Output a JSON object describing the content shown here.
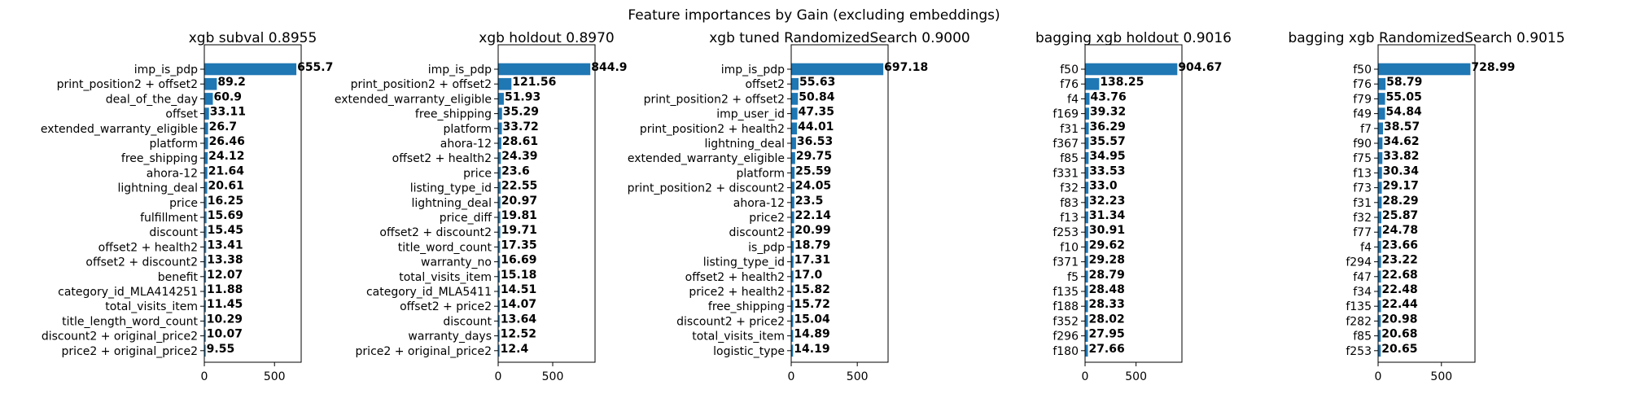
{
  "figure": {
    "title": "Feature importances by Gain (excluding embeddings)"
  },
  "chart_data": [
    {
      "type": "bar",
      "orientation": "horizontal",
      "title": "xgb subval 0.8955",
      "xlim": [
        0,
        690
      ],
      "xticks": [
        0,
        500
      ],
      "categories": [
        "imp_is_pdp",
        "print_position2 + offset2",
        "deal_of_the_day",
        "offset",
        "extended_warranty_eligible",
        "platform",
        "free_shipping",
        "ahora-12",
        "lightning_deal",
        "price",
        "fulfillment",
        "discount",
        "offset2 + health2",
        "offset2 + discount2",
        "benefit",
        "category_id_MLA414251",
        "total_visits_item",
        "title_length_word_count",
        "discount2 + original_price2",
        "price2 + original_price2"
      ],
      "values": [
        655.7,
        89.2,
        60.9,
        33.11,
        26.7,
        26.46,
        24.12,
        21.64,
        20.61,
        16.25,
        15.69,
        15.45,
        13.41,
        13.38,
        12.07,
        11.88,
        11.45,
        10.29,
        10.07,
        9.55
      ],
      "labels": [
        "655.7",
        "89.2",
        "60.9",
        "33.11",
        "26.7",
        "26.46",
        "24.12",
        "21.64",
        "20.61",
        "16.25",
        "15.69",
        "15.45",
        "13.41",
        "13.38",
        "12.07",
        "11.88",
        "11.45",
        "10.29",
        "10.07",
        "9.55"
      ],
      "color": "#1f77b4"
    },
    {
      "type": "bar",
      "orientation": "horizontal",
      "title": "xgb holdout 0.8970",
      "xlim": [
        0,
        888
      ],
      "xticks": [
        0,
        500
      ],
      "categories": [
        "imp_is_pdp",
        "print_position2 + offset2",
        "extended_warranty_eligible",
        "free_shipping",
        "platform",
        "ahora-12",
        "offset2 + health2",
        "price",
        "listing_type_id",
        "lightning_deal",
        "price_diff",
        "offset2 + discount2",
        "title_word_count",
        "warranty_no",
        "total_visits_item",
        "category_id_MLA5411",
        "offset2 + price2",
        "discount",
        "warranty_days",
        "price2 + original_price2"
      ],
      "values": [
        844.9,
        121.56,
        51.93,
        35.29,
        33.72,
        28.61,
        24.39,
        23.6,
        22.55,
        20.97,
        19.81,
        19.71,
        17.35,
        16.69,
        15.18,
        14.51,
        14.07,
        13.64,
        12.52,
        12.4
      ],
      "labels": [
        "844.9",
        "121.56",
        "51.93",
        "35.29",
        "33.72",
        "28.61",
        "24.39",
        "23.6",
        "22.55",
        "20.97",
        "19.81",
        "19.71",
        "17.35",
        "16.69",
        "15.18",
        "14.51",
        "14.07",
        "13.64",
        "12.52",
        "12.4"
      ],
      "color": "#1f77b4"
    },
    {
      "type": "bar",
      "orientation": "horizontal",
      "title": "xgb tuned RandomizedSearch 0.9000",
      "xlim": [
        0,
        733
      ],
      "xticks": [
        0,
        500
      ],
      "categories": [
        "imp_is_pdp",
        "offset2",
        "print_position2 + offset2",
        "imp_user_id",
        "print_position2 + health2",
        "lightning_deal",
        "extended_warranty_eligible",
        "platform",
        "print_position2 + discount2",
        "ahora-12",
        "price2",
        "discount2",
        "is_pdp",
        "listing_type_id",
        "offset2 + health2",
        "price2 + health2",
        "free_shipping",
        "discount2 + price2",
        "total_visits_item",
        "logistic_type"
      ],
      "values": [
        697.18,
        55.63,
        50.84,
        47.35,
        44.01,
        36.53,
        29.75,
        25.59,
        24.05,
        23.5,
        22.14,
        20.99,
        18.79,
        17.31,
        17.0,
        15.82,
        15.72,
        15.04,
        14.89,
        14.19
      ],
      "labels": [
        "697.18",
        "55.63",
        "50.84",
        "47.35",
        "44.01",
        "36.53",
        "29.75",
        "25.59",
        "24.05",
        "23.5",
        "22.14",
        "20.99",
        "18.79",
        "17.31",
        "17.0",
        "15.82",
        "15.72",
        "15.04",
        "14.89",
        "14.19"
      ],
      "color": "#1f77b4"
    },
    {
      "type": "bar",
      "orientation": "horizontal",
      "title": "bagging xgb holdout 0.9016",
      "xlim": [
        0,
        950
      ],
      "xticks": [
        0,
        500
      ],
      "categories": [
        "f50",
        "f76",
        "f4",
        "f169",
        "f31",
        "f367",
        "f85",
        "f331",
        "f32",
        "f83",
        "f13",
        "f253",
        "f10",
        "f371",
        "f5",
        "f135",
        "f188",
        "f352",
        "f296",
        "f180"
      ],
      "values": [
        904.67,
        138.25,
        43.76,
        39.32,
        36.29,
        35.57,
        34.95,
        33.53,
        33.0,
        32.23,
        31.34,
        30.91,
        29.62,
        29.28,
        28.79,
        28.48,
        28.33,
        28.02,
        27.95,
        27.66
      ],
      "labels": [
        "904.67",
        "138.25",
        "43.76",
        "39.32",
        "36.29",
        "35.57",
        "34.95",
        "33.53",
        "33.0",
        "32.23",
        "31.34",
        "30.91",
        "29.62",
        "29.28",
        "28.79",
        "28.48",
        "28.33",
        "28.02",
        "27.95",
        "27.66"
      ],
      "color": "#1f77b4"
    },
    {
      "type": "bar",
      "orientation": "horizontal",
      "title": "bagging xgb RandomizedSearch 0.9015",
      "xlim": [
        0,
        765
      ],
      "xticks": [
        0,
        500
      ],
      "categories": [
        "f50",
        "f76",
        "f79",
        "f49",
        "f7",
        "f90",
        "f75",
        "f13",
        "f73",
        "f31",
        "f32",
        "f77",
        "f4",
        "f294",
        "f47",
        "f34",
        "f135",
        "f282",
        "f85",
        "f253"
      ],
      "values": [
        728.99,
        58.79,
        55.05,
        54.84,
        38.57,
        34.62,
        33.82,
        30.34,
        29.17,
        28.29,
        25.87,
        24.78,
        23.66,
        23.22,
        22.68,
        22.48,
        22.44,
        20.98,
        20.68,
        20.65
      ],
      "labels": [
        "728.99",
        "58.79",
        "55.05",
        "54.84",
        "38.57",
        "34.62",
        "33.82",
        "30.34",
        "29.17",
        "28.29",
        "25.87",
        "24.78",
        "23.66",
        "23.22",
        "22.68",
        "22.48",
        "22.44",
        "20.98",
        "20.68",
        "20.65"
      ],
      "color": "#1f77b4"
    }
  ]
}
